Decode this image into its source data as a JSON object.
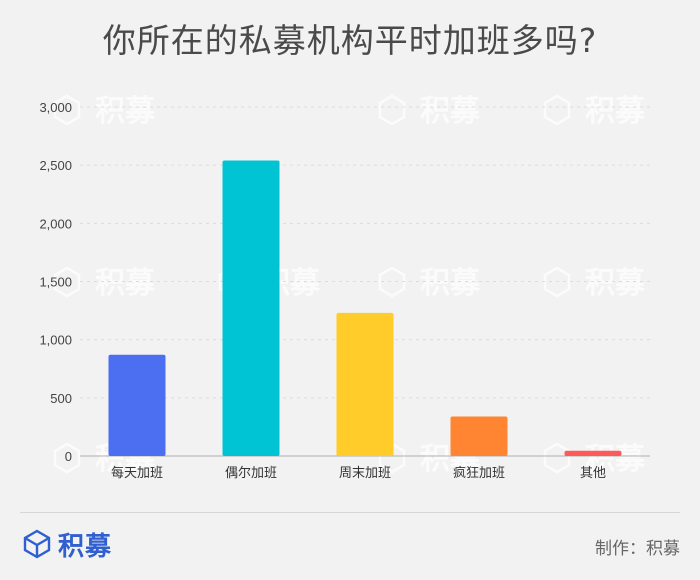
{
  "title": "你所在的私募机构平时加班多吗?",
  "footer": {
    "logo_text": "积募",
    "credit": "制作：积募",
    "brand_color": "#2f5fd0"
  },
  "watermark_text": "积募",
  "chart_data": {
    "type": "bar",
    "categories": [
      "每天加班",
      "偶尔加班",
      "周末加班",
      "疯狂加班",
      "其他"
    ],
    "values": [
      870,
      2540,
      1230,
      340,
      45
    ],
    "colors": [
      "#4c6ef0",
      "#00c4d4",
      "#ffcc29",
      "#ff8533",
      "#ff5a5a"
    ],
    "ylim": [
      0,
      3000
    ],
    "yticks": [
      0,
      500,
      1000,
      1500,
      2000,
      2500,
      3000
    ],
    "ytick_labels": [
      "0",
      "500",
      "1,000",
      "1,500",
      "2,000",
      "2,500",
      "3,000"
    ],
    "grid": true,
    "xlabel": "",
    "ylabel": ""
  }
}
